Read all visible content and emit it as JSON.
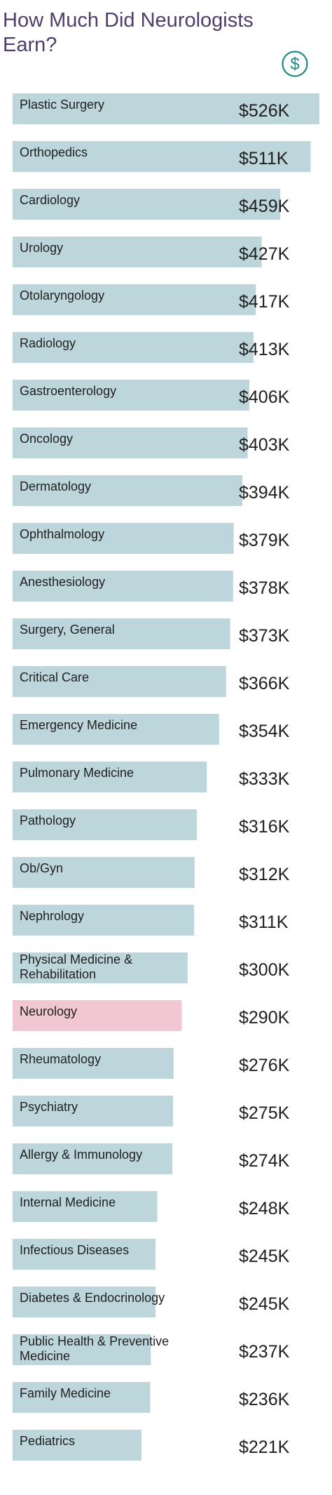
{
  "title": "How Much Did Neurologists Earn?",
  "colors": {
    "title": "#4f3d6e",
    "bar": "#bdd6dc",
    "highlight_bar": "#f0c7d3",
    "highlight_text": "#c0466e",
    "icon": "#1d8a82"
  },
  "icon": "dollar-circle-icon",
  "chart_data": {
    "type": "bar",
    "orientation": "horizontal",
    "title": "How Much Did Neurologists Earn?",
    "unit": "$K",
    "highlight": "Neurology",
    "categories": [
      "Plastic Surgery",
      "Orthopedics",
      "Cardiology",
      "Urology",
      "Otolaryngology",
      "Radiology",
      "Gastroenterology",
      "Oncology",
      "Dermatology",
      "Ophthalmology",
      "Anesthesiology",
      "Surgery, General",
      "Critical Care",
      "Emergency Medicine",
      "Pulmonary Medicine",
      "Pathology",
      "Ob/Gyn",
      "Nephrology",
      "Physical Medicine & Rehabilitation",
      "Neurology",
      "Rheumatology",
      "Psychiatry",
      "Allergy & Immunology",
      "Internal Medicine",
      "Infectious Diseases",
      "Diabetes & Endocrinology",
      "Public Health & Preventive Medicine",
      "Family Medicine",
      "Pediatrics"
    ],
    "category_lines": [
      [
        "Plastic Surgery"
      ],
      [
        "Orthopedics"
      ],
      [
        "Cardiology"
      ],
      [
        "Urology"
      ],
      [
        "Otolaryngology"
      ],
      [
        "Radiology"
      ],
      [
        "Gastroenterology"
      ],
      [
        "Oncology"
      ],
      [
        "Dermatology"
      ],
      [
        "Ophthalmology"
      ],
      [
        "Anesthesiology"
      ],
      [
        "Surgery, General"
      ],
      [
        "Critical Care"
      ],
      [
        "Emergency Medicine"
      ],
      [
        "Pulmonary Medicine"
      ],
      [
        "Pathology"
      ],
      [
        "Ob/Gyn"
      ],
      [
        "Nephrology"
      ],
      [
        "Physical Medicine &",
        "Rehabilitation"
      ],
      [
        "Neurology"
      ],
      [
        "Rheumatology"
      ],
      [
        "Psychiatry"
      ],
      [
        "Allergy & Immunology"
      ],
      [
        "Internal Medicine"
      ],
      [
        "Infectious Diseases"
      ],
      [
        "Diabetes & Endocrinology"
      ],
      [
        "Public Health & Preventive",
        "Medicine"
      ],
      [
        "Family Medicine"
      ],
      [
        "Pediatrics"
      ]
    ],
    "values": [
      526,
      511,
      459,
      427,
      417,
      413,
      406,
      403,
      394,
      379,
      378,
      373,
      366,
      354,
      333,
      316,
      312,
      311,
      300,
      290,
      276,
      275,
      274,
      248,
      245,
      245,
      237,
      236,
      221
    ],
    "value_labels": [
      "$526K",
      "$511K",
      "$459K",
      "$427K",
      "$417K",
      "$413K",
      "$406K",
      "$403K",
      "$394K",
      "$379K",
      "$378K",
      "$373K",
      "$366K",
      "$354K",
      "$333K",
      "$316K",
      "$312K",
      "$311K",
      "$300K",
      "$290K",
      "$276K",
      "$275K",
      "$274K",
      "$248K",
      "$245K",
      "$245K",
      "$237K",
      "$236K",
      "$221K"
    ],
    "xlim": [
      0,
      526
    ]
  }
}
